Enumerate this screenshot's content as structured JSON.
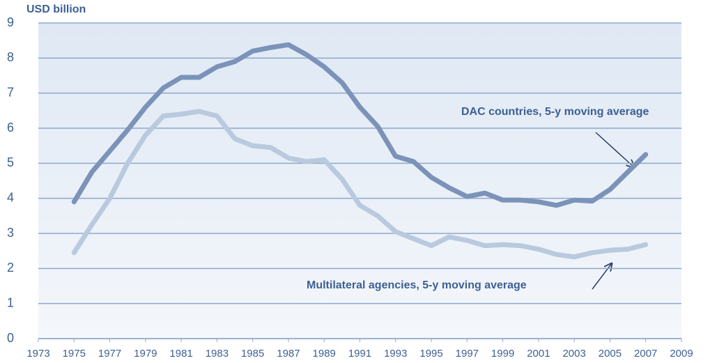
{
  "chart_data": {
    "type": "line",
    "y_label": "USD billion",
    "annotations": [
      "DAC countries, 5-y moving average",
      "Multilateral agencies, 5-y moving average"
    ],
    "x": [
      1975,
      1976,
      1977,
      1978,
      1979,
      1980,
      1981,
      1982,
      1983,
      1984,
      1985,
      1986,
      1987,
      1988,
      1989,
      1990,
      1991,
      1992,
      1993,
      1994,
      1995,
      1996,
      1997,
      1998,
      1999,
      2000,
      2001,
      2002,
      2003,
      2004,
      2005,
      2006,
      2007
    ],
    "series": [
      {
        "name": "DAC countries",
        "color": "#7b93b8",
        "values": [
          3.9,
          4.75,
          5.35,
          5.95,
          6.6,
          7.15,
          7.45,
          7.45,
          7.75,
          7.9,
          8.2,
          8.3,
          8.38,
          8.1,
          7.75,
          7.3,
          6.6,
          6.05,
          5.2,
          5.05,
          4.6,
          4.3,
          4.05,
          4.15,
          3.95,
          3.95,
          3.9,
          3.8,
          3.95,
          3.92,
          4.25,
          4.75,
          5.25
        ]
      },
      {
        "name": "Multilateral agencies",
        "color": "#b9c9de",
        "values": [
          2.45,
          3.25,
          4.0,
          5.0,
          5.8,
          6.35,
          6.4,
          6.48,
          6.35,
          5.7,
          5.5,
          5.45,
          5.15,
          5.05,
          5.1,
          4.55,
          3.8,
          3.5,
          3.05,
          2.85,
          2.65,
          2.9,
          2.8,
          2.65,
          2.68,
          2.65,
          2.55,
          2.4,
          2.33,
          2.45,
          2.52,
          2.55,
          2.68
        ]
      }
    ],
    "xlim": [
      1973,
      2009
    ],
    "xticks": [
      1973,
      1975,
      1977,
      1979,
      1981,
      1983,
      1985,
      1987,
      1989,
      1991,
      1993,
      1995,
      1997,
      1999,
      2001,
      2003,
      2005,
      2007,
      2009
    ],
    "ylim": [
      0,
      9
    ],
    "yticks": [
      0,
      1,
      2,
      3,
      4,
      5,
      6,
      7,
      8,
      9
    ],
    "grid": true
  }
}
